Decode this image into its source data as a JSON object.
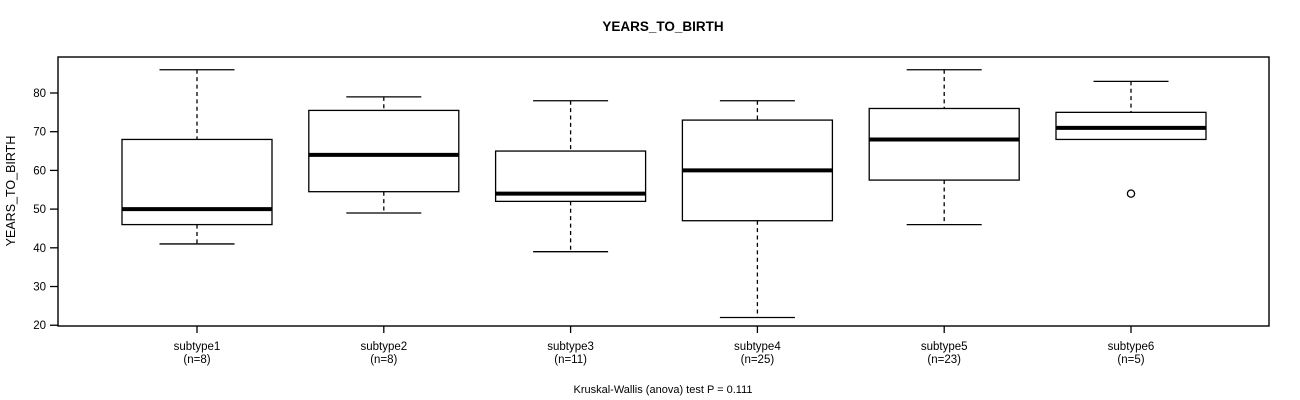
{
  "page": {
    "background": "#ffffff"
  },
  "chart_data": {
    "type": "boxplot",
    "title": "YEARS_TO_BIRTH",
    "ylabel": "YEARS_TO_BIRTH",
    "xlabel": "",
    "caption": "Kruskal-Wallis (anova) test P = 0.111",
    "p_value": "0.111",
    "grid": false,
    "legend": "none",
    "y_ticks": [
      20,
      30,
      40,
      50,
      60,
      70,
      80
    ],
    "ylim": [
      19.8,
      89.3
    ],
    "colors": {
      "line": "#000000",
      "box_fill": "#ffffff",
      "background": "#ffffff"
    },
    "groups": [
      {
        "label": "subtype1",
        "sublabel": "(n=8)",
        "n": 8,
        "whisker_low": 41,
        "q1": 46,
        "median": 50,
        "q3": 68,
        "whisker_high": 86,
        "outliers": []
      },
      {
        "label": "subtype2",
        "sublabel": "(n=8)",
        "n": 8,
        "whisker_low": 49,
        "q1": 54.5,
        "median": 64,
        "q3": 75.5,
        "whisker_high": 79,
        "outliers": []
      },
      {
        "label": "subtype3",
        "sublabel": "(n=11)",
        "n": 11,
        "whisker_low": 39,
        "q1": 52,
        "median": 54,
        "q3": 65,
        "whisker_high": 78,
        "outliers": []
      },
      {
        "label": "subtype4",
        "sublabel": "(n=25)",
        "n": 25,
        "whisker_low": 22,
        "q1": 47,
        "median": 60,
        "q3": 73,
        "whisker_high": 78,
        "outliers": []
      },
      {
        "label": "subtype5",
        "sublabel": "(n=23)",
        "n": 23,
        "whisker_low": 46,
        "q1": 57.5,
        "median": 68,
        "q3": 76,
        "whisker_high": 86,
        "outliers": []
      },
      {
        "label": "subtype6",
        "sublabel": "(n=5)",
        "n": 5,
        "whisker_low": 68,
        "q1": 68,
        "median": 71,
        "q3": 75,
        "whisker_high": 83,
        "outliers": [
          54
        ]
      }
    ]
  }
}
